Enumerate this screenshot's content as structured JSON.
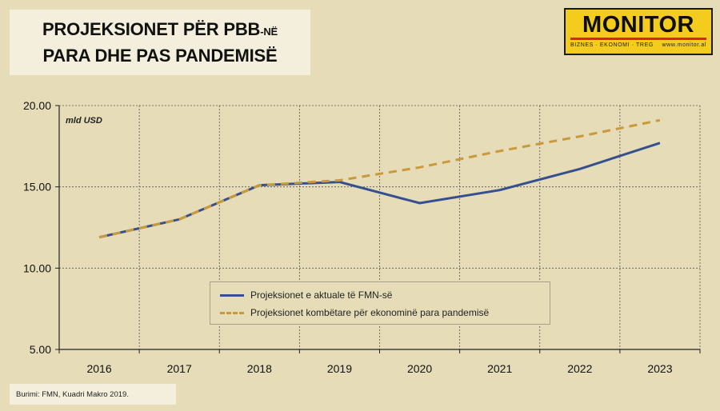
{
  "title": {
    "line1_main": "PROJEKSIONET PËR PBB",
    "line1_suffix": "-NË",
    "line2": "PARA DHE PAS PANDEMISË"
  },
  "logo": {
    "word": "MONITOR",
    "tagline": "BIZNES · EKONOMI · TREG",
    "site": "www.monitor.al",
    "colors": {
      "background": "#f3cc1d",
      "bar": "#d6261d"
    }
  },
  "source": "Burimi: FMN, Kuadri Makro 2019.",
  "chart_data": {
    "type": "line",
    "unit_label": "mld USD",
    "categories": [
      "2016",
      "2017",
      "2018",
      "2019",
      "2020",
      "2021",
      "2022",
      "2023"
    ],
    "y_ticks": [
      "5.00",
      "10.00",
      "15.00",
      "20.00"
    ],
    "ylim": [
      5,
      20
    ],
    "grid": true,
    "legend_position": "bottom-center",
    "series": [
      {
        "name": "Projeksionet e aktuale të FMN-së",
        "style": "solid",
        "color": "#34508e",
        "values": [
          11.9,
          13.0,
          15.1,
          15.3,
          14.0,
          14.8,
          16.1,
          17.7
        ]
      },
      {
        "name": "Projeksionet kombëtare për ekonominë para pandemisë",
        "style": "dashed",
        "color": "#c99a3b",
        "values": [
          11.9,
          13.0,
          15.1,
          15.4,
          16.2,
          17.2,
          18.1,
          19.1
        ]
      }
    ]
  }
}
